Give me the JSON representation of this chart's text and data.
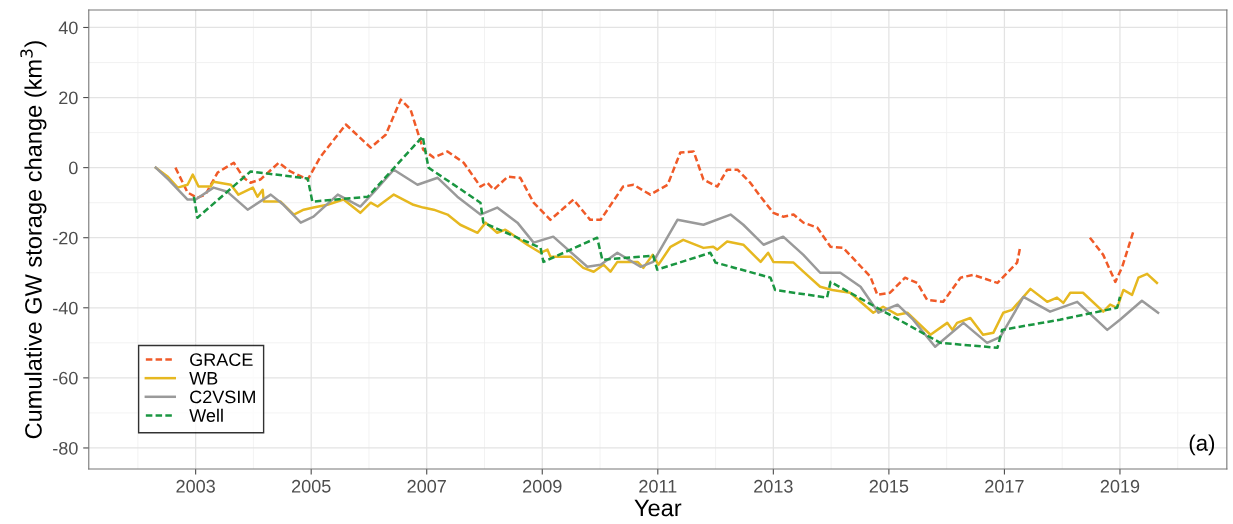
{
  "chart_data": {
    "type": "line",
    "xlabel": "Year",
    "ylabel": "Cumulative GW storage change (km$^{3}$)",
    "xlim": [
      2001.15,
      2020.85
    ],
    "xticks": [
      2003,
      2005,
      2007,
      2009,
      2011,
      2013,
      2015,
      2017,
      2019
    ],
    "ylim": [
      -86,
      45
    ],
    "yticks": [
      -80,
      -60,
      -40,
      -20,
      0,
      20,
      40
    ],
    "grid": true,
    "legend": "bottom left",
    "annotations": [
      "(a)"
    ],
    "series": [
      {
        "name": "GRACE",
        "color": "#f05a28",
        "line_style": "dashed",
        "x": [
          2002.65,
          2002.86,
          2003.03,
          2003.17,
          2003.38,
          2003.66,
          2003.83,
          2003.95,
          2004.12,
          2004.44,
          2004.64,
          2004.94,
          2005.16,
          2005.6,
          2006.03,
          2006.29,
          2006.55,
          2006.72,
          2006.94,
          2007.12,
          2007.36,
          2007.64,
          2007.93,
          2008.05,
          2008.16,
          2008.4,
          2008.62,
          2008.85,
          2009.14,
          2009.54,
          2009.83,
          2010.01,
          2010.4,
          2010.58,
          2010.87,
          2011.17,
          2011.39,
          2011.62,
          2011.79,
          2012.03,
          2012.2,
          2012.38,
          2012.6,
          2012.78,
          2013.0,
          2013.17,
          2013.35,
          2013.52,
          2013.76,
          2013.99,
          2014.21,
          2014.45,
          2014.68,
          2014.8,
          2015.02,
          2015.28,
          2015.49,
          2015.66,
          2015.94,
          2016.24,
          2016.46,
          2016.88,
          2017.22,
          2017.27,
          2017.9,
          2018.48,
          2018.71,
          2018.92,
          2019.04,
          2019.23
        ],
        "values": [
          0,
          -7.1,
          -8.6,
          -7.7,
          -1.4,
          1.4,
          -2.9,
          -4.3,
          -3.4,
          1.4,
          -1.1,
          -3.4,
          3.1,
          12.3,
          5.7,
          9.4,
          19.4,
          16.6,
          5.1,
          2.9,
          4.6,
          1.4,
          -5.4,
          -4.3,
          -6.3,
          -2.6,
          -2.9,
          -10,
          -14.9,
          -9.1,
          -14.9,
          -14.9,
          -5.4,
          -4.9,
          -7.7,
          -4.9,
          4.3,
          4.6,
          -3.4,
          -5.4,
          -0.6,
          -0.6,
          -4.3,
          -8.3,
          -12.9,
          -14,
          -13.4,
          -15.7,
          -17.1,
          -22.6,
          -22.9,
          -27.1,
          -31.1,
          -36.3,
          -35.7,
          -31.4,
          -32.9,
          -37.7,
          -38.3,
          -31.4,
          -30.6,
          -32.9,
          -27.1,
          -22.9,
          null,
          -20,
          -24.9,
          -32.6,
          -28.3,
          -18.3
        ]
      },
      {
        "name": "WB",
        "color": "#e6b820",
        "line_style": "solid",
        "x": [
          2002.31,
          2002.52,
          2002.69,
          2002.86,
          2002.95,
          2003.05,
          2003.26,
          2003.31,
          2003.61,
          2003.74,
          2003.99,
          2004.07,
          2004.16,
          2004.18,
          2004.47,
          2004.7,
          2004.87,
          2005.04,
          2005.28,
          2005.56,
          2005.85,
          2006.03,
          2006.15,
          2006.43,
          2006.77,
          2006.94,
          2007.12,
          2007.36,
          2007.58,
          2007.88,
          2008.02,
          2008.22,
          2008.36,
          2008.74,
          2008.97,
          2009.09,
          2009.14,
          2009.49,
          2009.71,
          2009.89,
          2010.06,
          2010.18,
          2010.3,
          2010.65,
          2010.75,
          2010.91,
          2011.01,
          2011.22,
          2011.44,
          2011.79,
          2011.96,
          2012.03,
          2012.2,
          2012.48,
          2012.78,
          2012.91,
          2013.0,
          2013.35,
          2013.52,
          2013.81,
          2014.02,
          2014.33,
          2014.73,
          2014.9,
          2015.15,
          2015.32,
          2015.72,
          2016.01,
          2016.1,
          2016.18,
          2016.41,
          2016.63,
          2016.81,
          2016.98,
          2017.13,
          2017.45,
          2017.74,
          2017.91,
          2018.02,
          2018.14,
          2018.36,
          2018.71,
          2018.83,
          2018.95,
          2019.06,
          2019.21,
          2019.32,
          2019.47,
          2019.64
        ],
        "values": [
          0,
          -2.6,
          -5.7,
          -4.9,
          -2,
          -5.4,
          -5.4,
          -4,
          -4.9,
          -7.7,
          -5.7,
          -8.3,
          -6.3,
          -9.7,
          -9.7,
          -13.4,
          -12,
          -11.4,
          -10.6,
          -9.1,
          -12.9,
          -10,
          -11.1,
          -7.7,
          -10.6,
          -11.4,
          -12,
          -13.4,
          -16.3,
          -18.6,
          -15.7,
          -18.6,
          -17.7,
          -22,
          -24.3,
          -23.4,
          -25.4,
          -25.4,
          -28.6,
          -29.7,
          -27.7,
          -29.7,
          -26.9,
          -26.9,
          -28.6,
          -24.9,
          -27.7,
          -22.6,
          -20.6,
          -22.9,
          -22.6,
          -23.4,
          -21.1,
          -22,
          -26.9,
          -24.3,
          -26.9,
          -27.1,
          -29.7,
          -34,
          -34.9,
          -35.7,
          -41.4,
          -39.7,
          -42,
          -41.4,
          -47.7,
          -44.3,
          -46.3,
          -44.3,
          -42.9,
          -47.7,
          -47.1,
          -41.4,
          -40.6,
          -34.6,
          -38.3,
          -37.1,
          -38.6,
          -35.7,
          -35.7,
          -41.1,
          -39.1,
          -40,
          -34.9,
          -36.3,
          -31.4,
          -30.3,
          -32.9
        ]
      },
      {
        "name": "C2VSIM",
        "color": "#9a9a9a",
        "line_style": "solid",
        "x": [
          2002.31,
          2002.53,
          2002.86,
          2003.0,
          2003.31,
          2003.55,
          2003.9,
          2004.3,
          2004.52,
          2004.82,
          2005.04,
          2005.46,
          2005.85,
          2006.08,
          2006.43,
          2006.84,
          2007.19,
          2007.53,
          2007.93,
          2008.22,
          2008.57,
          2008.85,
          2009.19,
          2009.78,
          2010.01,
          2010.3,
          2010.7,
          2010.92,
          2011.34,
          2011.79,
          2012.26,
          2012.48,
          2012.83,
          2013.17,
          2013.52,
          2013.81,
          2014.16,
          2014.51,
          2014.82,
          2015.15,
          2015.42,
          2015.8,
          2016.29,
          2016.7,
          2016.93,
          2017.33,
          2017.79,
          2018.26,
          2018.78,
          2019.0,
          2019.38,
          2019.66
        ],
        "values": [
          0,
          -3.4,
          -9.1,
          -9.1,
          -5.7,
          -6.9,
          -12,
          -7.7,
          -10.6,
          -15.7,
          -14,
          -7.7,
          -11.1,
          -7.1,
          -0.6,
          -4.9,
          -2.9,
          -8.3,
          -13.4,
          -11.4,
          -15.7,
          -21.4,
          -19.7,
          -28.3,
          -27.7,
          -24.3,
          -28.3,
          -26.9,
          -14.9,
          -16.3,
          -13.4,
          -16.3,
          -22,
          -19.7,
          -24.9,
          -30,
          -30,
          -34,
          -41.4,
          -39.1,
          -43.4,
          -51.1,
          -44.3,
          -50,
          -48.3,
          -36.9,
          -41.1,
          -38.3,
          -46.3,
          -43.4,
          -38,
          -41.4
        ]
      },
      {
        "name": "Well",
        "color": "#1a9641",
        "line_style": "dashed",
        "x": [
          2002.97,
          2003.03,
          2003.95,
          2004.94,
          2005.02,
          2005.98,
          2006.93,
          2007.03,
          2007.93,
          2007.98,
          2008.97,
          2009.02,
          2009.95,
          2010.04,
          2010.92,
          2010.99,
          2011.91,
          2012.0,
          2012.95,
          2013.03,
          2013.93,
          2013.99,
          2015.89,
          2016.88,
          2016.96,
          2017.96,
          2018.95,
          2019.0
        ],
        "values": [
          -8.3,
          -14.3,
          -1.1,
          -3.1,
          -9.7,
          -8.3,
          8.9,
          0,
          -10,
          -15.7,
          -22.9,
          -26.9,
          -20,
          -26.3,
          -25.1,
          -29.1,
          -24.3,
          -27.1,
          -31.4,
          -34.9,
          -37.1,
          -32.6,
          -50,
          -51.4,
          -46.3,
          -43.4,
          -40,
          -36.9
        ]
      }
    ]
  }
}
